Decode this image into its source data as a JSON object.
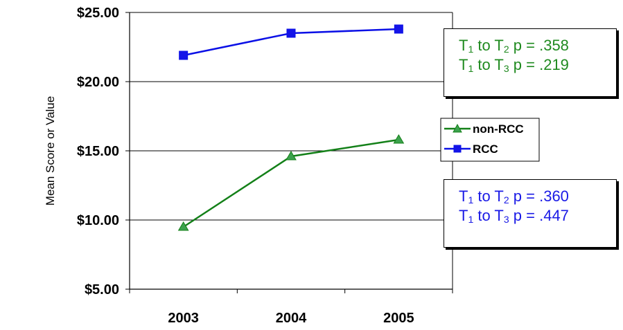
{
  "chart_data": {
    "type": "line",
    "categories": [
      "2003",
      "2004",
      "2005"
    ],
    "series": [
      {
        "name": "non-RCC",
        "values": [
          9.5,
          14.6,
          15.8
        ],
        "color": "#138018",
        "marker_fill": "#3CA24D",
        "marker": "triangle"
      },
      {
        "name": "RCC",
        "values": [
          21.9,
          23.5,
          23.8
        ],
        "color": "#0B10E6",
        "marker_fill": "#1414E8",
        "marker": "square"
      }
    ],
    "title": "",
    "xlabel": "",
    "ylabel": "Mean Score or Value",
    "ylim": [
      5,
      25
    ],
    "yticks": [
      5,
      10,
      15,
      20,
      25
    ],
    "ytick_labels": [
      "$5.00",
      "$10.00",
      "$15.00",
      "$20.00",
      "$25.00"
    ],
    "grid": "horizontal",
    "legend": "right",
    "annotations": [
      {
        "color": "#1F8A1F",
        "lines": [
          {
            "t1": "T",
            "s1": "1",
            "mid": " to T",
            "s2": "2",
            "rest": " p = .358"
          },
          {
            "t1": "T",
            "s1": "1",
            "mid": " to T",
            "s2": "3",
            "rest": " p = .219"
          }
        ]
      },
      {
        "color": "#1A1AE6",
        "lines": [
          {
            "t1": "T",
            "s1": "1",
            "mid": " to T",
            "s2": "2",
            "rest": " p = .360"
          },
          {
            "t1": "T",
            "s1": "1",
            "mid": " to T",
            "s2": "3",
            "rest": " p = .447"
          }
        ]
      }
    ]
  }
}
